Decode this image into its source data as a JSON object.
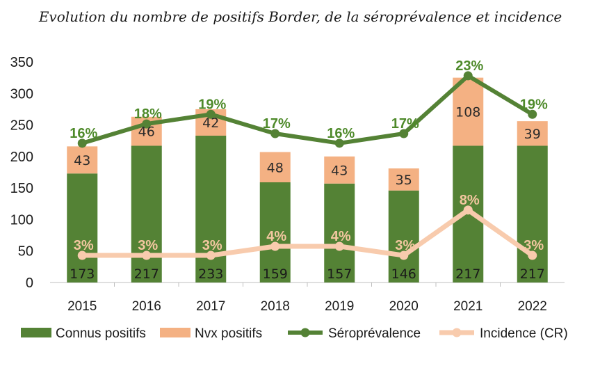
{
  "chart_data": {
    "type": "bar",
    "title": "Evolution du nombre de positifs Border, de la séroprévalence et incidence",
    "categories": [
      "2015",
      "2016",
      "2017",
      "2018",
      "2019",
      "2020",
      "2021",
      "2022"
    ],
    "ylim": [
      0,
      350
    ],
    "yticks": [
      "0",
      "50",
      "100",
      "150",
      "200",
      "250",
      "300",
      "350"
    ],
    "grid": false,
    "legend_position": "bottom",
    "series": [
      {
        "name": "Connus positifs",
        "kind": "stacked-bar",
        "color": "#548235",
        "values": [
          173,
          217,
          233,
          159,
          157,
          146,
          217,
          217
        ]
      },
      {
        "name": "Nvx positifs",
        "kind": "stacked-bar",
        "color": "#f4b183",
        "values": [
          43,
          46,
          42,
          48,
          43,
          35,
          108,
          39
        ]
      },
      {
        "name": "Séroprévalence",
        "kind": "line",
        "color": "#548235",
        "labels": [
          "16%",
          "18%",
          "19%",
          "17%",
          "16%",
          "17%",
          "23%",
          "19%"
        ],
        "values": [
          16,
          18,
          19,
          17,
          16,
          17,
          23,
          19
        ]
      },
      {
        "name": "Incidence (CR)",
        "kind": "line",
        "color": "#f8cbad",
        "labels": [
          "3%",
          "3%",
          "3%",
          "4%",
          "4%",
          "3%",
          "8%",
          "3%"
        ],
        "values": [
          3,
          3,
          3,
          4,
          4,
          3,
          8,
          3
        ]
      }
    ]
  }
}
